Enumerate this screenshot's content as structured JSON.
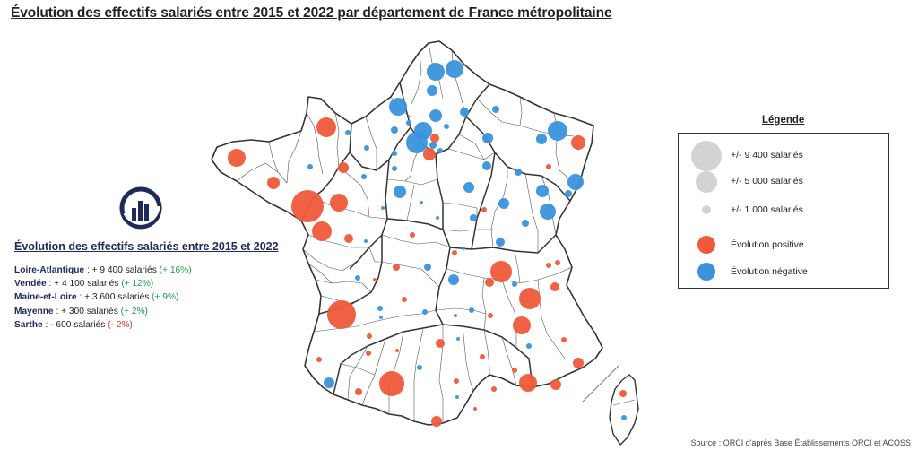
{
  "title": "Évolution des effectifs salariés entre 2015 et 2022 par département de France métropolitaine",
  "colors": {
    "positive": "#f05a3a",
    "negative": "#3a93dc",
    "size_ref": "#d3d3d3",
    "border": "#333333",
    "heading": "#1f2a5c"
  },
  "legend": {
    "title": "Légende",
    "sizes": [
      {
        "label": "+/- 9 400 salariés",
        "value": 9400
      },
      {
        "label": "+/- 5 000 salariés",
        "value": 5000
      },
      {
        "label": "+/- 1 000 salariés",
        "value": 1000
      }
    ],
    "colors": [
      {
        "label": "Évolution positive",
        "color": "#f05a3a"
      },
      {
        "label": "Évolution négative",
        "color": "#3a93dc"
      }
    ]
  },
  "panel": {
    "heading": "Évolution des effectifs salariés entre 2015 et 2022",
    "rows": [
      {
        "dept": "Loire-Atlantique",
        "text": " : + 9 400 salariés ",
        "pct": "(+ 16%)",
        "sign": "pos"
      },
      {
        "dept": "Vendée",
        "text": " : + 4 100 salariés ",
        "pct": "(+ 12%)",
        "sign": "pos"
      },
      {
        "dept": "Maine-et-Loire",
        "text": " : + 3 600 salariés ",
        "pct": "(+ 9%)",
        "sign": "pos"
      },
      {
        "dept": "Mayenne",
        "text": " : + 300 salariés ",
        "pct": "(+ 2%)",
        "sign": "pos"
      },
      {
        "dept": "Sarthe",
        "text": " : - 600 salariés ",
        "pct": "(- 2%)",
        "sign": "neg"
      }
    ]
  },
  "source": "Source : ORCI d'après Base Établissements ORCI et ACOSS"
}
